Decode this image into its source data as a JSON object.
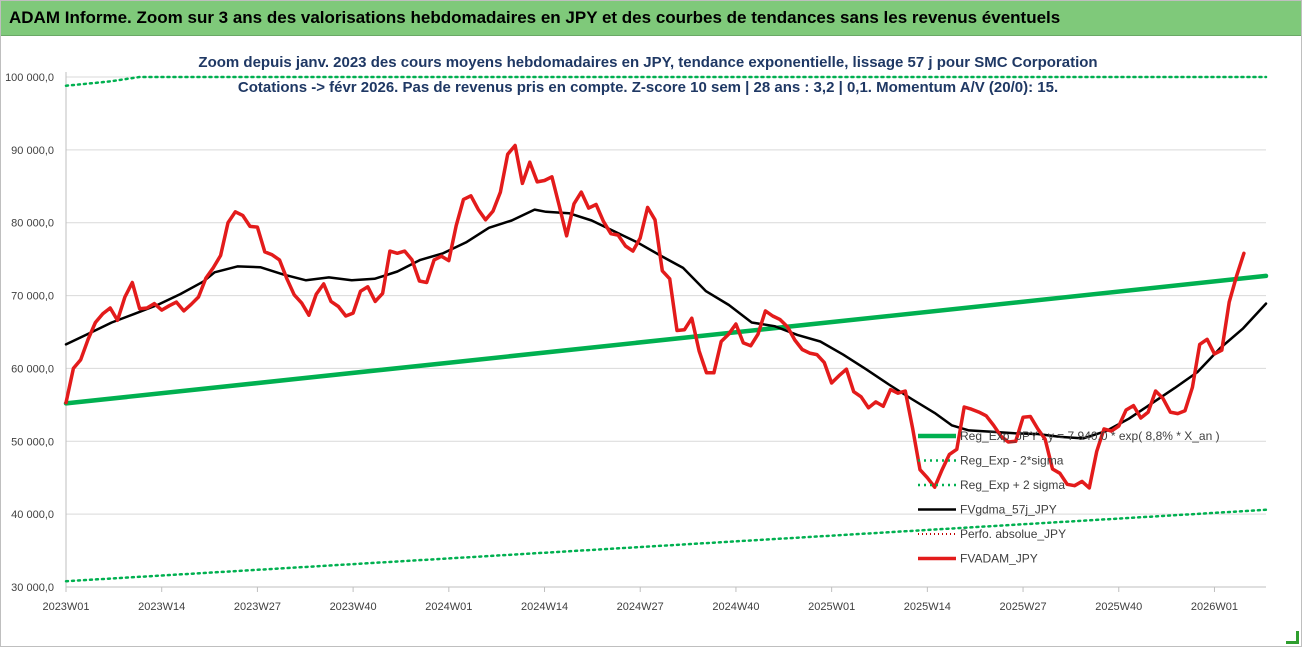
{
  "banner": "ADAM Informe. Zoom sur 3 ans des valorisations hebdomadaires en JPY et des courbes de tendances sans les revenus éventuels",
  "chart_data": {
    "type": "line",
    "title": "Zoom depuis janv. 2023 des cours moyens hebdomadaires en JPY, tendance exponentielle, lissage 57 j pour SMC Corporation",
    "subtitle": "Cotations -> févr 2026. Pas de revenus pris en compte. Z-score 10 sem | 28 ans : 3,2 | 0,1. Momentum A/V (20/0): 15.",
    "ylim": [
      30000,
      100000
    ],
    "yticks": [
      30000,
      40000,
      50000,
      60000,
      70000,
      80000,
      90000,
      100000
    ],
    "ytick_labels": [
      "30 000,0",
      "40 000,0",
      "50 000,0",
      "60 000,0",
      "70 000,0",
      "80 000,0",
      "90 000,0",
      "100 000,0"
    ],
    "xticks": [
      "2023W01",
      "2023W14",
      "2023W27",
      "2023W40",
      "2024W01",
      "2024W14",
      "2024W27",
      "2024W40",
      "2025W01",
      "2025W14",
      "2025W27",
      "2025W40",
      "2026W01"
    ],
    "x_weeks_total": 163,
    "grid": true,
    "legend_position": "right",
    "colors": {
      "reg_exp": "#00b050",
      "sigma": "#00b050",
      "fvgdma": "#000000",
      "perf": "#c00000",
      "fvadam": "#e31b1b"
    },
    "series": [
      {
        "name": "Reg_Exp_JPY : y = 7 940,0 * exp( 8,8% * X_an )",
        "style": "thick-line",
        "points": [
          [
            0,
            55200
          ],
          [
            163,
            72700
          ]
        ]
      },
      {
        "name": "Reg_Exp - 2*sigma",
        "style": "dotted",
        "points": [
          [
            0,
            98800
          ],
          [
            3,
            99100
          ],
          [
            6,
            99400
          ],
          [
            8,
            99700
          ],
          [
            10,
            100000
          ],
          [
            163,
            100000
          ]
        ]
      },
      {
        "name": "Reg_Exp + 2 sigma",
        "style": "dotted",
        "points": [
          [
            0,
            30800
          ],
          [
            163,
            40600
          ]
        ]
      },
      {
        "name": "FVgdma_57j_JPY",
        "style": "line",
        "points": [
          [
            0,
            63300
          ],
          [
            4,
            64800
          ],
          [
            8,
            66300
          ],
          [
            12,
            67500
          ],
          [
            16,
            68700
          ],
          [
            20,
            70200
          ],
          [
            24,
            71900
          ],
          [
            26,
            73200
          ],
          [
            30,
            74000
          ],
          [
            34,
            73900
          ],
          [
            38,
            72900
          ],
          [
            42,
            72100
          ],
          [
            46,
            72500
          ],
          [
            50,
            72100
          ],
          [
            54,
            72300
          ],
          [
            58,
            73300
          ],
          [
            62,
            74900
          ],
          [
            66,
            75800
          ],
          [
            70,
            77300
          ],
          [
            74,
            79300
          ],
          [
            78,
            80300
          ],
          [
            82,
            81800
          ],
          [
            84,
            81500
          ],
          [
            88,
            81300
          ],
          [
            92,
            80300
          ],
          [
            96,
            78800
          ],
          [
            100,
            77300
          ],
          [
            104,
            75500
          ],
          [
            108,
            73800
          ],
          [
            112,
            70600
          ],
          [
            116,
            68700
          ],
          [
            120,
            66300
          ],
          [
            124,
            65800
          ],
          [
            128,
            64600
          ],
          [
            132,
            63700
          ],
          [
            136,
            61900
          ],
          [
            140,
            59900
          ],
          [
            144,
            57800
          ],
          [
            148,
            55800
          ],
          [
            152,
            53900
          ],
          [
            155,
            52200
          ],
          [
            158,
            51500
          ],
          [
            162,
            51300
          ],
          [
            166,
            51100
          ],
          [
            170,
            51000
          ],
          [
            174,
            50600
          ],
          [
            178,
            50400
          ],
          [
            182,
            51400
          ],
          [
            186,
            53100
          ],
          [
            190,
            55200
          ],
          [
            194,
            57300
          ],
          [
            198,
            59500
          ],
          [
            202,
            62800
          ],
          [
            206,
            65500
          ],
          [
            210,
            68900
          ]
        ],
        "x_scale": 0.77619
      },
      {
        "name": "Perfo. absolue_JPY",
        "style": "dotted-red",
        "points": []
      },
      {
        "name": "FVADAM_JPY",
        "style": "thick-line",
        "points": [
          [
            0,
            55300
          ],
          [
            1,
            60000
          ],
          [
            2,
            61200
          ],
          [
            3,
            64000
          ],
          [
            4,
            66300
          ],
          [
            5,
            67500
          ],
          [
            6,
            68300
          ],
          [
            7,
            66600
          ],
          [
            8,
            69800
          ],
          [
            9,
            71800
          ],
          [
            10,
            68200
          ],
          [
            11,
            68300
          ],
          [
            12,
            68900
          ],
          [
            13,
            68000
          ],
          [
            14,
            68600
          ],
          [
            15,
            69100
          ],
          [
            16,
            67900
          ],
          [
            17,
            68800
          ],
          [
            18,
            69800
          ],
          [
            19,
            72400
          ],
          [
            20,
            73800
          ],
          [
            21,
            75500
          ],
          [
            22,
            80000
          ],
          [
            23,
            81500
          ],
          [
            24,
            81000
          ],
          [
            25,
            79500
          ],
          [
            26,
            79400
          ],
          [
            27,
            76000
          ],
          [
            28,
            75600
          ],
          [
            29,
            74900
          ],
          [
            30,
            72300
          ],
          [
            31,
            70100
          ],
          [
            32,
            69000
          ],
          [
            33,
            67300
          ],
          [
            34,
            70200
          ],
          [
            35,
            71600
          ],
          [
            36,
            69200
          ],
          [
            37,
            68500
          ],
          [
            38,
            67200
          ],
          [
            39,
            67600
          ],
          [
            40,
            70600
          ],
          [
            41,
            71200
          ],
          [
            42,
            69200
          ],
          [
            43,
            70300
          ],
          [
            44,
            76100
          ],
          [
            45,
            75800
          ],
          [
            46,
            76100
          ],
          [
            47,
            74900
          ],
          [
            48,
            72000
          ],
          [
            49,
            71800
          ],
          [
            50,
            74900
          ],
          [
            51,
            75400
          ],
          [
            52,
            74800
          ],
          [
            53,
            79600
          ],
          [
            54,
            83200
          ],
          [
            55,
            83700
          ],
          [
            56,
            81800
          ],
          [
            57,
            80400
          ],
          [
            58,
            81600
          ],
          [
            59,
            84200
          ],
          [
            60,
            89400
          ],
          [
            61,
            90600
          ],
          [
            62,
            85400
          ],
          [
            63,
            88300
          ],
          [
            64,
            85600
          ],
          [
            65,
            85800
          ],
          [
            66,
            86300
          ],
          [
            67,
            82300
          ],
          [
            68,
            78200
          ],
          [
            69,
            82600
          ],
          [
            70,
            84200
          ],
          [
            71,
            82000
          ],
          [
            72,
            82500
          ],
          [
            73,
            80200
          ],
          [
            74,
            78500
          ],
          [
            75,
            78300
          ],
          [
            76,
            76800
          ],
          [
            77,
            76100
          ],
          [
            78,
            77900
          ],
          [
            79,
            82100
          ],
          [
            80,
            80400
          ],
          [
            81,
            73400
          ],
          [
            82,
            72300
          ],
          [
            83,
            65200
          ],
          [
            84,
            65300
          ],
          [
            85,
            66900
          ],
          [
            86,
            62400
          ],
          [
            87,
            59400
          ],
          [
            88,
            59400
          ],
          [
            89,
            63700
          ],
          [
            90,
            64700
          ],
          [
            91,
            66100
          ],
          [
            92,
            63500
          ],
          [
            93,
            63100
          ],
          [
            94,
            64700
          ],
          [
            95,
            67900
          ],
          [
            96,
            67200
          ],
          [
            97,
            66700
          ],
          [
            98,
            65700
          ],
          [
            99,
            63900
          ],
          [
            100,
            62600
          ],
          [
            101,
            62100
          ],
          [
            102,
            61900
          ],
          [
            103,
            60800
          ],
          [
            104,
            58000
          ],
          [
            105,
            59000
          ],
          [
            106,
            59900
          ],
          [
            107,
            56800
          ],
          [
            108,
            56100
          ],
          [
            109,
            54600
          ],
          [
            110,
            55400
          ],
          [
            111,
            54800
          ],
          [
            112,
            57100
          ],
          [
            113,
            56600
          ],
          [
            114,
            56900
          ],
          [
            115,
            51800
          ],
          [
            116,
            46100
          ],
          [
            117,
            45000
          ],
          [
            118,
            43700
          ],
          [
            119,
            46100
          ],
          [
            120,
            48200
          ],
          [
            121,
            48900
          ],
          [
            122,
            54700
          ],
          [
            123,
            54400
          ],
          [
            124,
            54000
          ],
          [
            125,
            53500
          ],
          [
            126,
            52200
          ],
          [
            127,
            50700
          ],
          [
            128,
            49900
          ],
          [
            129,
            50000
          ],
          [
            130,
            53300
          ],
          [
            131,
            53400
          ],
          [
            132,
            51700
          ],
          [
            133,
            50300
          ],
          [
            134,
            46200
          ],
          [
            135,
            45600
          ],
          [
            136,
            44100
          ],
          [
            137,
            43900
          ],
          [
            138,
            44500
          ],
          [
            139,
            43600
          ],
          [
            140,
            48600
          ],
          [
            141,
            51700
          ],
          [
            142,
            51400
          ],
          [
            143,
            52100
          ],
          [
            144,
            54300
          ],
          [
            145,
            54900
          ],
          [
            146,
            53200
          ],
          [
            147,
            54000
          ],
          [
            148,
            56900
          ],
          [
            149,
            55900
          ],
          [
            150,
            54000
          ],
          [
            151,
            53800
          ],
          [
            152,
            54200
          ],
          [
            153,
            57400
          ],
          [
            154,
            63300
          ],
          [
            155,
            64000
          ],
          [
            156,
            62000
          ],
          [
            157,
            62500
          ],
          [
            158,
            69100
          ],
          [
            159,
            72700
          ],
          [
            160,
            75800
          ]
        ]
      }
    ],
    "legend": [
      {
        "label": "Reg_Exp_JPY : y = 7 940,0 * exp( 8,8% * X_an )",
        "style": "thick-green"
      },
      {
        "label": "Reg_Exp - 2*sigma",
        "style": "dotted-green"
      },
      {
        "label": "Reg_Exp + 2 sigma",
        "style": "dotted-green"
      },
      {
        "label": "FVgdma_57j_JPY",
        "style": "black"
      },
      {
        "label": "Perfo. absolue_JPY",
        "style": "dotted-red"
      },
      {
        "label": "FVADAM_JPY",
        "style": "thick-red"
      }
    ]
  }
}
